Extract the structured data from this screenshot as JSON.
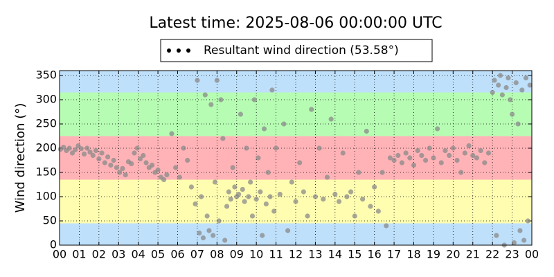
{
  "chart_data": {
    "type": "scatter",
    "title": "Latest time: 2025-08-06 00:00:00 UTC",
    "y_label": "Wind direction (°)",
    "xlim": [
      0,
      24
    ],
    "ylim": [
      0,
      360
    ],
    "xticks": [
      {
        "value": 0,
        "label": "00"
      },
      {
        "value": 1,
        "label": "01"
      },
      {
        "value": 2,
        "label": "02"
      },
      {
        "value": 3,
        "label": "03"
      },
      {
        "value": 4,
        "label": "04"
      },
      {
        "value": 5,
        "label": "05"
      },
      {
        "value": 6,
        "label": "06"
      },
      {
        "value": 7,
        "label": "07"
      },
      {
        "value": 8,
        "label": "08"
      },
      {
        "value": 9,
        "label": "09"
      },
      {
        "value": 10,
        "label": "10"
      },
      {
        "value": 11,
        "label": "11"
      },
      {
        "value": 12,
        "label": "12"
      },
      {
        "value": 13,
        "label": "13"
      },
      {
        "value": 14,
        "label": "14"
      },
      {
        "value": 15,
        "label": "15"
      },
      {
        "value": 16,
        "label": "16"
      },
      {
        "value": 17,
        "label": "17"
      },
      {
        "value": 18,
        "label": "18"
      },
      {
        "value": 19,
        "label": "19"
      },
      {
        "value": 20,
        "label": "20"
      },
      {
        "value": 21,
        "label": "21"
      },
      {
        "value": 22,
        "label": "22"
      },
      {
        "value": 23,
        "label": "23"
      },
      {
        "value": 24,
        "label": "00"
      }
    ],
    "yticks": [
      0,
      50,
      100,
      150,
      200,
      250,
      300,
      350
    ],
    "grid": true,
    "bands": [
      {
        "from": 0,
        "to": 45,
        "color": "#bfe0fb"
      },
      {
        "from": 45,
        "to": 135,
        "color": "#fffdb0"
      },
      {
        "from": 135,
        "to": 225,
        "color": "#ffb3b7"
      },
      {
        "from": 225,
        "to": 315,
        "color": "#b6fdb3"
      },
      {
        "from": 315,
        "to": 360,
        "color": "#bfe0fb"
      }
    ],
    "legend": "top",
    "series": [
      {
        "name": "Resultant wind direction (53.58°)",
        "color": "#8a8a8a",
        "x": [
          0.05,
          0.2,
          0.35,
          0.5,
          0.65,
          0.8,
          0.95,
          1.1,
          1.25,
          1.4,
          1.55,
          1.7,
          1.85,
          2.0,
          2.15,
          2.3,
          2.45,
          2.6,
          2.75,
          2.9,
          3.05,
          3.2,
          3.35,
          3.5,
          3.65,
          3.8,
          3.95,
          4.1,
          4.25,
          4.4,
          4.55,
          4.7,
          4.85,
          5.0,
          5.15,
          5.3,
          5.45,
          5.7,
          5.9,
          6.1,
          6.3,
          6.5,
          6.7,
          6.9,
          7.0,
          7.1,
          7.2,
          7.3,
          7.4,
          7.5,
          7.6,
          7.7,
          7.8,
          7.9,
          8.0,
          8.1,
          8.2,
          8.3,
          8.4,
          8.5,
          8.6,
          8.7,
          8.8,
          8.9,
          9.0,
          9.1,
          9.2,
          9.3,
          9.4,
          9.5,
          9.6,
          9.7,
          9.8,
          9.9,
          10.0,
          10.1,
          10.2,
          10.3,
          10.4,
          10.5,
          10.6,
          10.7,
          10.8,
          10.9,
          11.0,
          11.2,
          11.4,
          11.6,
          11.8,
          12.0,
          12.2,
          12.4,
          12.6,
          12.8,
          13.0,
          13.2,
          13.4,
          13.6,
          13.8,
          14.0,
          14.2,
          14.4,
          14.6,
          14.8,
          15.0,
          15.2,
          15.4,
          15.6,
          15.8,
          16.0,
          16.2,
          16.4,
          16.6,
          16.8,
          17.0,
          17.2,
          17.4,
          17.6,
          17.8,
          18.0,
          18.2,
          18.4,
          18.6,
          18.8,
          19.0,
          19.2,
          19.4,
          19.6,
          19.8,
          20.0,
          20.2,
          20.4,
          20.6,
          20.8,
          21.0,
          21.2,
          21.4,
          21.6,
          21.8,
          22.0,
          22.1,
          22.2,
          22.3,
          22.4,
          22.5,
          22.6,
          22.7,
          22.8,
          22.9,
          23.0,
          23.1,
          23.2,
          23.3,
          23.4,
          23.5,
          23.6,
          23.7,
          23.8,
          23.9
        ],
        "values": [
          198,
          202,
          195,
          200,
          190,
          197,
          205,
          199,
          188,
          200,
          192,
          185,
          195,
          178,
          190,
          170,
          182,
          165,
          175,
          160,
          150,
          158,
          145,
          172,
          168,
          190,
          200,
          178,
          185,
          170,
          160,
          165,
          150,
          155,
          140,
          135,
          145,
          230,
          160,
          140,
          200,
          175,
          120,
          85,
          340,
          25,
          100,
          15,
          310,
          60,
          30,
          290,
          20,
          130,
          340,
          50,
          300,
          220,
          10,
          80,
          110,
          95,
          160,
          120,
          100,
          105,
          270,
          115,
          90,
          200,
          100,
          130,
          60,
          300,
          95,
          180,
          110,
          20,
          240,
          85,
          150,
          100,
          320,
          70,
          200,
          105,
          250,
          30,
          130,
          90,
          170,
          110,
          60,
          280,
          100,
          200,
          95,
          140,
          260,
          105,
          90,
          190,
          100,
          110,
          60,
          150,
          95,
          235,
          80,
          120,
          70,
          150,
          40,
          180,
          175,
          185,
          170,
          190,
          180,
          165,
          195,
          185,
          175,
          200,
          180,
          240,
          170,
          195,
          185,
          200,
          175,
          150,
          190,
          205,
          185,
          180,
          195,
          170,
          190,
          315,
          340,
          20,
          330,
          350,
          310,
          0,
          325,
          345,
          300,
          270,
          5,
          335,
          250,
          30,
          320,
          10,
          345,
          50,
          330
        ]
      }
    ]
  }
}
